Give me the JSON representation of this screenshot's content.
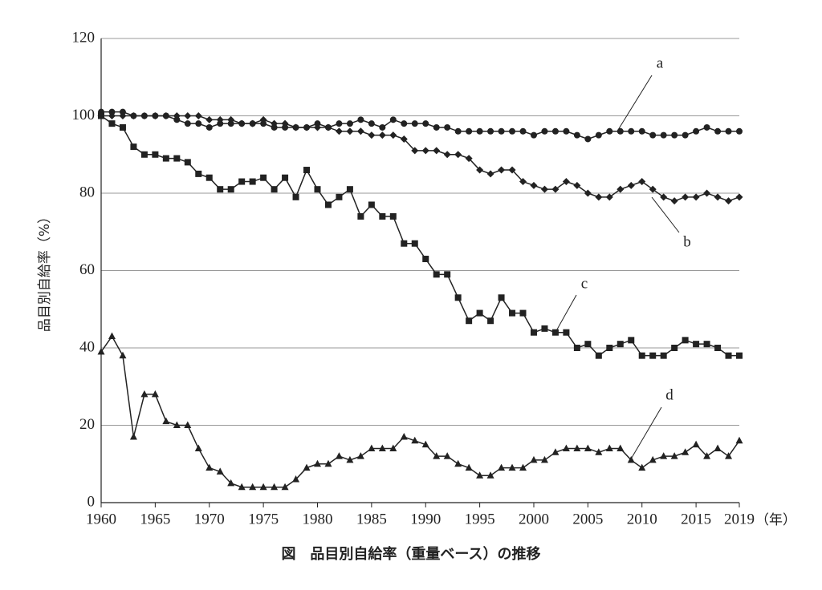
{
  "chart_data": {
    "type": "line",
    "title": "図　品目別自給率（重量ベース）の推移",
    "y_label": "品目別自給率（%）",
    "x_unit": "（年）",
    "x": [
      1960,
      1961,
      1962,
      1963,
      1964,
      1965,
      1966,
      1967,
      1968,
      1969,
      1970,
      1971,
      1972,
      1973,
      1974,
      1975,
      1976,
      1977,
      1978,
      1979,
      1980,
      1981,
      1982,
      1983,
      1984,
      1985,
      1986,
      1987,
      1988,
      1989,
      1990,
      1991,
      1992,
      1993,
      1994,
      1995,
      1996,
      1997,
      1998,
      1999,
      2000,
      2001,
      2002,
      2003,
      2004,
      2005,
      2006,
      2007,
      2008,
      2009,
      2010,
      2011,
      2012,
      2013,
      2014,
      2015,
      2016,
      2017,
      2018,
      2019
    ],
    "xlim": [
      1960,
      2019
    ],
    "xticks": [
      1960,
      1965,
      1970,
      1975,
      1980,
      1985,
      1990,
      1995,
      2000,
      2005,
      2010,
      2015,
      2019
    ],
    "ylim": [
      0,
      120
    ],
    "yticks": [
      0,
      20,
      40,
      60,
      80,
      100,
      120
    ],
    "grid": true,
    "series": [
      {
        "name": "a",
        "color": "#222222",
        "marker": "circle",
        "values": [
          101,
          101,
          101,
          100,
          100,
          100,
          100,
          99,
          98,
          98,
          97,
          98,
          98,
          98,
          98,
          98,
          97,
          97,
          97,
          97,
          98,
          97,
          98,
          98,
          99,
          98,
          97,
          99,
          98,
          98,
          98,
          97,
          97,
          96,
          96,
          96,
          96,
          96,
          96,
          96,
          95,
          96,
          96,
          96,
          95,
          94,
          95,
          96,
          96,
          96,
          96,
          95,
          95,
          95,
          95,
          96,
          97,
          96,
          96,
          96
        ]
      },
      {
        "name": "b",
        "color": "#222222",
        "marker": "diamond",
        "values": [
          100,
          100,
          100,
          100,
          100,
          100,
          100,
          100,
          100,
          100,
          99,
          99,
          99,
          98,
          98,
          99,
          98,
          98,
          97,
          97,
          97,
          97,
          96,
          96,
          96,
          95,
          95,
          95,
          94,
          91,
          91,
          91,
          90,
          90,
          89,
          86,
          85,
          86,
          86,
          83,
          82,
          81,
          81,
          83,
          82,
          80,
          79,
          79,
          81,
          82,
          83,
          81,
          79,
          78,
          79,
          79,
          80,
          79,
          78,
          79
        ]
      },
      {
        "name": "c",
        "color": "#222222",
        "marker": "square",
        "values": [
          100,
          98,
          97,
          92,
          90,
          90,
          89,
          89,
          88,
          85,
          84,
          81,
          81,
          83,
          83,
          84,
          81,
          84,
          79,
          86,
          81,
          77,
          79,
          81,
          74,
          77,
          74,
          74,
          67,
          67,
          63,
          59,
          59,
          53,
          47,
          49,
          47,
          53,
          49,
          49,
          44,
          45,
          44,
          44,
          40,
          41,
          38,
          40,
          41,
          42,
          38,
          38,
          38,
          40,
          42,
          41,
          41,
          40,
          38,
          38
        ]
      },
      {
        "name": "d",
        "color": "#222222",
        "marker": "triangle",
        "values": [
          39,
          43,
          38,
          17,
          28,
          28,
          21,
          20,
          20,
          14,
          9,
          8,
          5,
          4,
          4,
          4,
          4,
          4,
          6,
          9,
          10,
          10,
          12,
          11,
          12,
          14,
          14,
          14,
          17,
          16,
          15,
          12,
          12,
          10,
          9,
          7,
          7,
          9,
          9,
          9,
          11,
          11,
          13,
          14,
          14,
          14,
          13,
          14,
          14,
          11,
          9,
          11,
          12,
          12,
          13,
          15,
          12,
          14,
          12,
          16
        ]
      }
    ]
  }
}
